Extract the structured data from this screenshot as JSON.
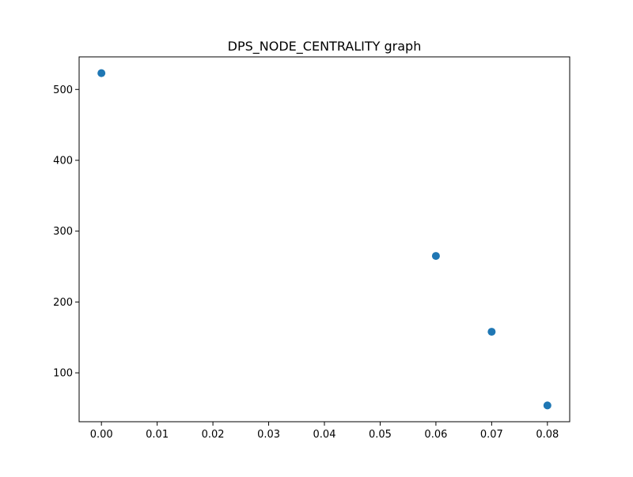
{
  "chart_data": {
    "type": "scatter",
    "title": "DPS_NODE_CENTRALITY graph",
    "xlabel": "",
    "ylabel": "",
    "x": [
      0.0,
      0.06,
      0.07,
      0.08
    ],
    "y": [
      523,
      265,
      158,
      54
    ],
    "xlim": [
      -0.004,
      0.084
    ],
    "ylim": [
      31,
      546
    ],
    "xticks": [
      0.0,
      0.01,
      0.02,
      0.03,
      0.04,
      0.05,
      0.06,
      0.07,
      0.08
    ],
    "xtick_labels": [
      "0.00",
      "0.01",
      "0.02",
      "0.03",
      "0.04",
      "0.05",
      "0.06",
      "0.07",
      "0.08"
    ],
    "yticks": [
      100,
      200,
      300,
      400,
      500
    ],
    "ytick_labels": [
      "100",
      "200",
      "300",
      "400",
      "500"
    ],
    "grid": false,
    "marker_color": "#1f77b4"
  }
}
